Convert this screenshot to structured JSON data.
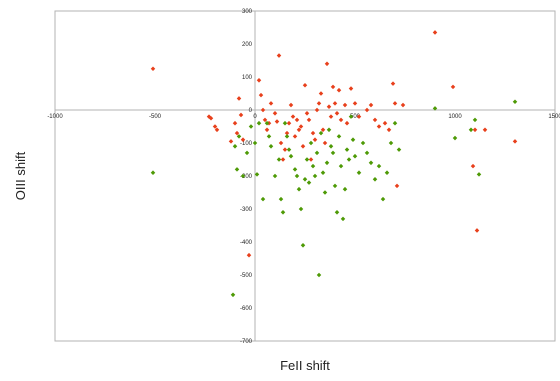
{
  "chart_data": {
    "type": "scatter",
    "xlabel": "FeII shift",
    "ylabel": "OIII shift",
    "xlim": [
      -1000,
      1500
    ],
    "ylim": [
      -700,
      300
    ],
    "xticks": [
      "-1000",
      "-500",
      "0",
      "500",
      "1000",
      "1500"
    ],
    "yticks": [
      "300",
      "200",
      "100",
      "0",
      "-100",
      "-200",
      "-300",
      "-400",
      "-500",
      "-600",
      "-700"
    ],
    "grid": false,
    "legend": "none",
    "colors": {
      "red": "#e8401c",
      "green": "#4e9a06"
    },
    "series": [
      {
        "color": "#e8401c",
        "points": [
          [
            -510,
            125
          ],
          [
            -230,
            -20
          ],
          [
            -220,
            -25
          ],
          [
            -200,
            -50
          ],
          [
            -190,
            -60
          ],
          [
            -120,
            -95
          ],
          [
            -100,
            -40
          ],
          [
            -90,
            -70
          ],
          [
            -80,
            35
          ],
          [
            -70,
            -15
          ],
          [
            -60,
            -90
          ],
          [
            -30,
            -440
          ],
          [
            20,
            90
          ],
          [
            30,
            45
          ],
          [
            40,
            0
          ],
          [
            50,
            -30
          ],
          [
            60,
            -60
          ],
          [
            70,
            -40
          ],
          [
            80,
            20
          ],
          [
            100,
            -10
          ],
          [
            110,
            -35
          ],
          [
            120,
            165
          ],
          [
            130,
            -100
          ],
          [
            140,
            -150
          ],
          [
            150,
            -120
          ],
          [
            160,
            -70
          ],
          [
            170,
            -40
          ],
          [
            180,
            15
          ],
          [
            190,
            -20
          ],
          [
            200,
            -80
          ],
          [
            210,
            -30
          ],
          [
            220,
            -60
          ],
          [
            230,
            -50
          ],
          [
            240,
            -110
          ],
          [
            250,
            75
          ],
          [
            260,
            -10
          ],
          [
            270,
            -30
          ],
          [
            280,
            -150
          ],
          [
            290,
            -70
          ],
          [
            300,
            -90
          ],
          [
            310,
            0
          ],
          [
            320,
            20
          ],
          [
            330,
            50
          ],
          [
            340,
            -60
          ],
          [
            350,
            -100
          ],
          [
            360,
            140
          ],
          [
            370,
            10
          ],
          [
            380,
            -20
          ],
          [
            390,
            70
          ],
          [
            400,
            20
          ],
          [
            410,
            -10
          ],
          [
            420,
            60
          ],
          [
            430,
            -30
          ],
          [
            450,
            15
          ],
          [
            460,
            -40
          ],
          [
            480,
            65
          ],
          [
            500,
            20
          ],
          [
            520,
            -20
          ],
          [
            560,
            0
          ],
          [
            580,
            15
          ],
          [
            600,
            -30
          ],
          [
            620,
            -50
          ],
          [
            650,
            -40
          ],
          [
            670,
            -60
          ],
          [
            690,
            80
          ],
          [
            700,
            20
          ],
          [
            710,
            -230
          ],
          [
            740,
            15
          ],
          [
            900,
            235
          ],
          [
            990,
            70
          ],
          [
            1090,
            -170
          ],
          [
            1100,
            -60
          ],
          [
            1110,
            -365
          ],
          [
            1150,
            -60
          ],
          [
            1300,
            -95
          ]
        ]
      },
      {
        "color": "#4e9a06",
        "points": [
          [
            -510,
            -190
          ],
          [
            -110,
            -560
          ],
          [
            -100,
            -110
          ],
          [
            -90,
            -180
          ],
          [
            -80,
            -80
          ],
          [
            -60,
            -200
          ],
          [
            -40,
            -130
          ],
          [
            -20,
            -50
          ],
          [
            0,
            -100
          ],
          [
            10,
            -195
          ],
          [
            20,
            -40
          ],
          [
            40,
            -270
          ],
          [
            60,
            -40
          ],
          [
            70,
            -80
          ],
          [
            80,
            -110
          ],
          [
            100,
            -200
          ],
          [
            120,
            -150
          ],
          [
            130,
            -270
          ],
          [
            140,
            -310
          ],
          [
            150,
            -40
          ],
          [
            160,
            -80
          ],
          [
            170,
            -120
          ],
          [
            180,
            -140
          ],
          [
            200,
            -180
          ],
          [
            210,
            -200
          ],
          [
            220,
            -240
          ],
          [
            230,
            -300
          ],
          [
            240,
            -410
          ],
          [
            250,
            -210
          ],
          [
            260,
            -150
          ],
          [
            270,
            -220
          ],
          [
            280,
            -100
          ],
          [
            290,
            -170
          ],
          [
            300,
            -200
          ],
          [
            310,
            -130
          ],
          [
            320,
            -500
          ],
          [
            330,
            -70
          ],
          [
            340,
            -190
          ],
          [
            350,
            -250
          ],
          [
            360,
            -160
          ],
          [
            370,
            -60
          ],
          [
            380,
            -110
          ],
          [
            390,
            -130
          ],
          [
            400,
            -230
          ],
          [
            410,
            -310
          ],
          [
            420,
            -80
          ],
          [
            430,
            -170
          ],
          [
            440,
            -330
          ],
          [
            450,
            -240
          ],
          [
            460,
            -120
          ],
          [
            470,
            -150
          ],
          [
            480,
            -20
          ],
          [
            490,
            -90
          ],
          [
            500,
            -140
          ],
          [
            520,
            -190
          ],
          [
            540,
            -100
          ],
          [
            560,
            -130
          ],
          [
            580,
            -160
          ],
          [
            600,
            -210
          ],
          [
            620,
            -170
          ],
          [
            640,
            -270
          ],
          [
            660,
            -190
          ],
          [
            680,
            -100
          ],
          [
            700,
            -40
          ],
          [
            720,
            -120
          ],
          [
            900,
            5
          ],
          [
            1000,
            -85
          ],
          [
            1080,
            -60
          ],
          [
            1100,
            -30
          ],
          [
            1120,
            -195
          ],
          [
            1300,
            25
          ]
        ]
      }
    ]
  }
}
